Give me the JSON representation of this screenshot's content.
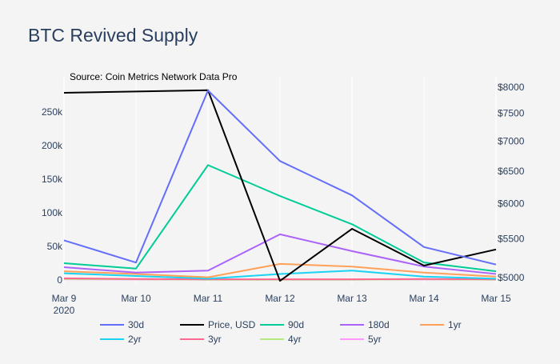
{
  "chart_data": {
    "type": "line",
    "title": "BTC Revived Supply",
    "annotation": "Source: Coin Metrics Network Data Pro",
    "categories": [
      "Mar 9",
      "Mar 10",
      "Mar 11",
      "Mar 12",
      "Mar 13",
      "Mar 14",
      "Mar 15"
    ],
    "x_year_label": "2020",
    "y_left": {
      "ticks": [
        0,
        50000,
        100000,
        150000,
        200000,
        250000
      ],
      "tick_labels": [
        "0",
        "50k",
        "100k",
        "150k",
        "200k",
        "250k"
      ],
      "range": [
        0,
        280000
      ]
    },
    "y_right": {
      "scale": "log",
      "ticks": [
        5000,
        5500,
        6000,
        6500,
        7000,
        7500,
        8000
      ],
      "tick_labels": [
        "$5000",
        "$5500",
        "$6000",
        "$6500",
        "$7000",
        "$7500",
        "$8000"
      ],
      "range": [
        4950,
        8000
      ]
    },
    "grid": "vertical",
    "legend_placement": "bottom",
    "series": [
      {
        "name": "30d",
        "axis": "left",
        "color": "#636efa",
        "values": [
          59000,
          26000,
          282000,
          177000,
          126000,
          49000,
          23000
        ]
      },
      {
        "name": "Price, USD",
        "axis": "right",
        "color": "#000000",
        "values": [
          7890,
          7915,
          7940,
          4960,
          5640,
          5150,
          5360
        ]
      },
      {
        "name": "90d",
        "axis": "left",
        "color": "#00cc96",
        "values": [
          25000,
          17000,
          171000,
          125000,
          83000,
          26000,
          13000
        ]
      },
      {
        "name": "180d",
        "axis": "left",
        "color": "#ab63fa",
        "values": [
          19000,
          11000,
          14000,
          68000,
          43000,
          20000,
          9000
        ]
      },
      {
        "name": "1yr",
        "axis": "left",
        "color": "#ffa15a",
        "values": [
          13000,
          9000,
          4000,
          24000,
          20000,
          11000,
          5000
        ]
      },
      {
        "name": "2yr",
        "axis": "left",
        "color": "#19d3f3",
        "values": [
          10000,
          6000,
          2000,
          9000,
          14000,
          5000,
          2000
        ]
      },
      {
        "name": "3yr",
        "axis": "left",
        "color": "#ff6692",
        "values": [
          2500,
          1500,
          1000,
          1000,
          1000,
          1500,
          1000
        ]
      },
      {
        "name": "4yr",
        "axis": "left",
        "color": "#b6e880",
        "values": [
          1500,
          1000,
          500,
          500,
          500,
          1000,
          500
        ]
      },
      {
        "name": "5yr",
        "axis": "left",
        "color": "#ff97ff",
        "values": [
          1000,
          800,
          500,
          500,
          500,
          800,
          500
        ]
      }
    ]
  }
}
